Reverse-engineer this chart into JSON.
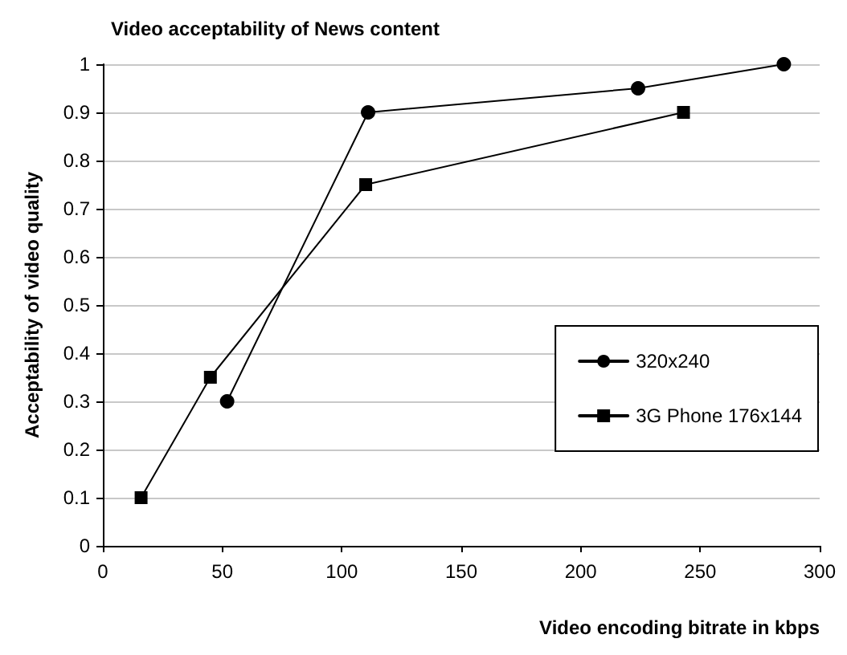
{
  "chart_data": {
    "type": "line",
    "title": "Video acceptability of News content",
    "xlabel": "Video encoding bitrate in kbps",
    "ylabel": "Acceptability of video quality",
    "series": [
      {
        "name": "320x240",
        "color": "#000000",
        "marker": "circle",
        "x": [
          52,
          111,
          224,
          285
        ],
        "values": [
          0.3,
          0.9,
          0.95,
          1.0
        ]
      },
      {
        "name": "3G Phone 176x144",
        "color": "#000000",
        "marker": "square",
        "x": [
          16,
          45,
          110,
          243
        ],
        "values": [
          0.1,
          0.35,
          0.75,
          0.9
        ]
      }
    ],
    "xlim": [
      0,
      300
    ],
    "xticks": [
      0,
      50,
      100,
      150,
      200,
      250,
      300
    ],
    "ylim": [
      0,
      1
    ],
    "yticks": [
      0,
      0.1,
      0.2,
      0.3,
      0.4,
      0.5,
      0.6,
      0.7,
      0.8,
      0.9,
      1
    ],
    "grid": "y",
    "legend": "bottom right",
    "line_style": "solid"
  }
}
